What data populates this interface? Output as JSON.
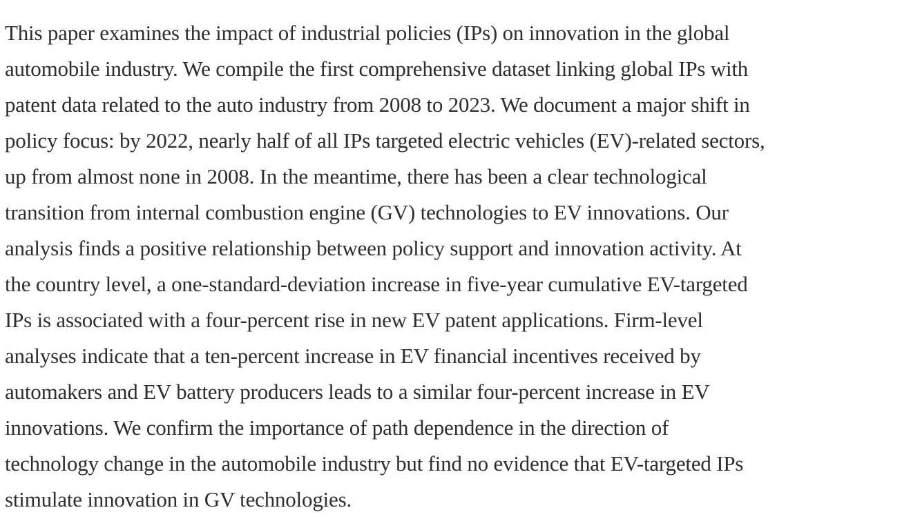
{
  "abstract": {
    "lines": [
      "This paper examines the impact of industrial policies (IPs) on innovation in the global",
      "automobile industry. We compile the first comprehensive dataset linking global IPs with",
      "patent data related to the auto industry from 2008 to 2023. We document a major shift in",
      "policy focus: by 2022, nearly half of all IPs targeted electric vehicles (EV)-related sectors,",
      "up from almost none in 2008. In the meantime, there has been a clear technological",
      "transition from internal combustion engine (GV) technologies to EV innovations. Our",
      "analysis finds a positive relationship between policy support and innovation activity. At",
      "the country level, a one-standard-deviation increase in five-year cumulative EV-targeted",
      "IPs is associated with a four-percent rise in new EV patent applications. Firm-level",
      "analyses indicate that a ten-percent increase in EV financial incentives received by",
      "automakers and EV battery producers leads to a similar four-percent increase in EV",
      "innovations. We confirm the importance of path dependence in the direction of",
      "technology change in the automobile industry but find no evidence that EV-targeted IPs",
      "stimulate innovation in GV technologies."
    ]
  }
}
